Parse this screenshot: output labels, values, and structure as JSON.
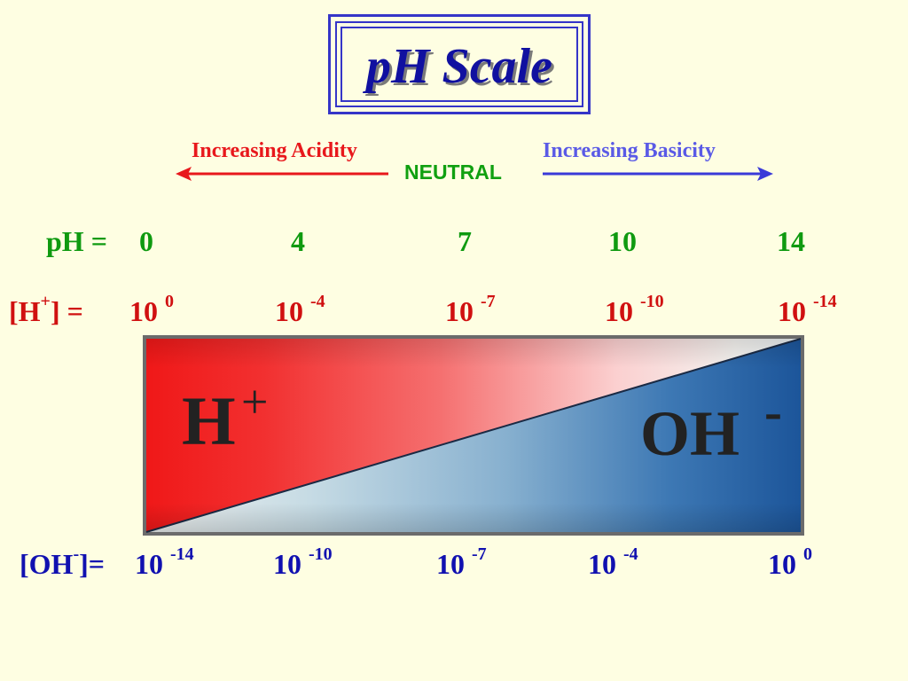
{
  "title": "pH Scale",
  "direction": {
    "acid_label": "Increasing Acidity",
    "base_label": "Increasing Basicity",
    "neutral_label": "NEUTRAL"
  },
  "ph_row": {
    "label": "pH =",
    "values": [
      "0",
      "4",
      "7",
      "10",
      "14"
    ]
  },
  "h_row": {
    "label_open": "[H",
    "label_sup": "+",
    "label_close": "] =",
    "bases": [
      "10",
      "10",
      "10",
      "10",
      "10"
    ],
    "exponents": [
      "0",
      "-4",
      "-7",
      "-10",
      "-14"
    ]
  },
  "oh_row": {
    "label_open": "[OH",
    "label_sup": "-",
    "label_close": "]=",
    "bases": [
      "10",
      "10",
      "10",
      "10",
      "10"
    ],
    "exponents": [
      "-14",
      "-10",
      "-7",
      "-4",
      "0"
    ]
  },
  "ions": {
    "h_symbol": "H",
    "h_charge": "+",
    "oh_symbol": "OH",
    "oh_charge": "-"
  },
  "colors": {
    "acid": "#e8181c",
    "base": "#2a5fa3",
    "neutral": "#10a010",
    "title": "#1010a0"
  }
}
